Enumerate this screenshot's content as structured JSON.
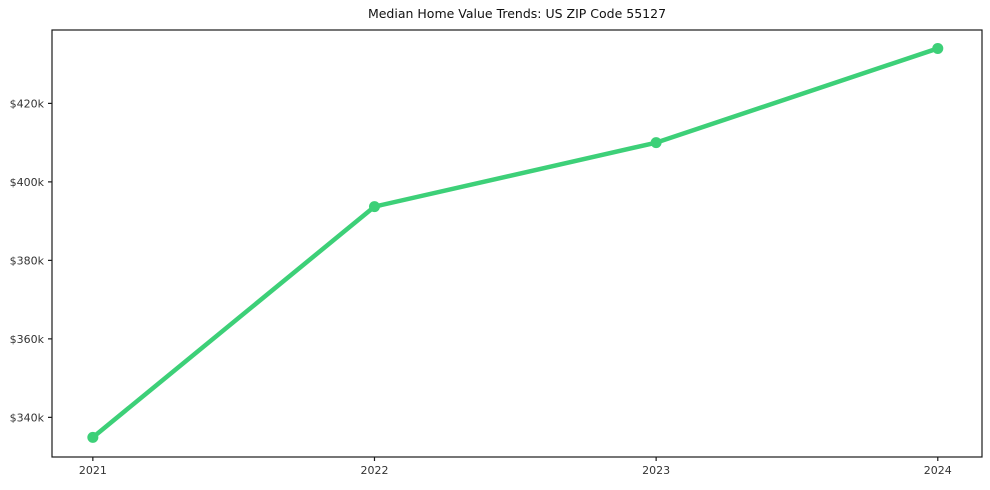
{
  "chart_data": {
    "type": "line",
    "title": "Median Home Value Trends: US ZIP Code 55127",
    "x": [
      2021,
      2022,
      2023,
      2024
    ],
    "x_tick_labels": [
      "2021",
      "2022",
      "2023",
      "2024"
    ],
    "values": [
      334900,
      393700,
      410000,
      434000
    ],
    "y_ticks": [
      {
        "value": 340000,
        "label": "$340k"
      },
      {
        "value": 360000,
        "label": "$360k"
      },
      {
        "value": 380000,
        "label": "$380k"
      },
      {
        "value": 400000,
        "label": "$400k"
      },
      {
        "value": 420000,
        "label": "$420k"
      }
    ],
    "xlim": [
      2020.855,
      2024.157
    ],
    "ylim": [
      329900,
      438700
    ],
    "xlabel": "",
    "ylabel": "",
    "grid": false,
    "legend": false,
    "marker": "circle",
    "colors": {
      "line": "#3dd078",
      "spine": "#1a1a1a",
      "tick_label": "#333333",
      "title": "#111111",
      "background": "#ffffff"
    }
  }
}
